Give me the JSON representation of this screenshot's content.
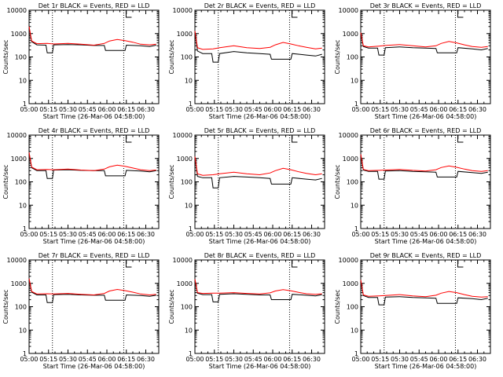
{
  "chart_data": [
    {
      "type": "line",
      "title": "Det 1r  BLACK = Events, RED = LLD",
      "xlabel": "Start Time (26-Mar-06 04:58:00)",
      "ylabel": "Counts/sec",
      "xlim": [
        "05:00",
        "06:40"
      ],
      "ylim": [
        1,
        10000
      ],
      "yscale": "log",
      "grid": false,
      "x_ticks": [
        "05:00",
        "05:15",
        "05:30",
        "05:45",
        "06:00",
        "06:15",
        "06:30"
      ],
      "y_ticks": [
        "1",
        "10",
        "100",
        "1000",
        "10000"
      ],
      "dotted_vlines": [
        "05:18",
        "06:13"
      ],
      "bracket_label": "L",
      "series": [
        {
          "name": "Events",
          "color": "#000000",
          "x_min": [
            0,
            2,
            6,
            13,
            14,
            18,
            19,
            30,
            40,
            50,
            58,
            59,
            74,
            75,
            86,
            93,
            98
          ],
          "y": [
            2000,
            450,
            330,
            320,
            150,
            150,
            330,
            340,
            330,
            310,
            310,
            190,
            190,
            320,
            300,
            280,
            320
          ]
        },
        {
          "name": "LLD",
          "color": "#ff0000",
          "x_min": [
            0,
            2,
            6,
            14,
            19,
            30,
            40,
            50,
            58,
            62,
            68,
            74,
            80,
            86,
            93,
            98
          ],
          "y": [
            2000,
            480,
            370,
            380,
            360,
            380,
            350,
            320,
            380,
            480,
            560,
            500,
            430,
            350,
            330,
            350
          ]
        }
      ]
    },
    {
      "type": "line",
      "title": "Det 2r  BLACK = Events, RED = LLD",
      "xlabel": "Start Time (26-Mar-06 04:58:00)",
      "ylabel": "Counts/sec",
      "xlim": [
        "05:00",
        "06:40"
      ],
      "ylim": [
        1,
        10000
      ],
      "yscale": "log",
      "grid": false,
      "x_ticks": [
        "05:00",
        "05:15",
        "05:30",
        "05:45",
        "06:00",
        "06:15",
        "06:30"
      ],
      "y_ticks": [
        "1",
        "10",
        "100",
        "1000",
        "10000"
      ],
      "dotted_vlines": [
        "05:18",
        "06:13"
      ],
      "bracket_label": "L",
      "series": [
        {
          "name": "Events",
          "color": "#000000",
          "x_min": [
            0,
            2,
            6,
            13,
            14,
            18,
            19,
            30,
            40,
            50,
            58,
            59,
            74,
            75,
            86,
            93,
            98
          ],
          "y": [
            1300,
            180,
            140,
            140,
            60,
            60,
            140,
            170,
            150,
            140,
            130,
            80,
            80,
            140,
            120,
            110,
            130
          ]
        },
        {
          "name": "LLD",
          "color": "#ff0000",
          "x_min": [
            0,
            2,
            6,
            14,
            19,
            30,
            40,
            50,
            58,
            62,
            68,
            74,
            80,
            86,
            93,
            98
          ],
          "y": [
            1300,
            250,
            210,
            220,
            250,
            300,
            250,
            230,
            260,
            330,
            420,
            360,
            300,
            260,
            220,
            240
          ]
        }
      ]
    },
    {
      "type": "line",
      "title": "Det 3r  BLACK = Events, RED = LLD",
      "xlabel": "Start Time (26-Mar-06 04:58:00)",
      "ylabel": "Counts/sec",
      "xlim": [
        "05:00",
        "06:40"
      ],
      "ylim": [
        1,
        10000
      ],
      "yscale": "log",
      "grid": false,
      "x_ticks": [
        "05:00",
        "05:15",
        "05:30",
        "05:45",
        "06:00",
        "06:15",
        "06:30"
      ],
      "y_ticks": [
        "1",
        "10",
        "100",
        "1000",
        "10000"
      ],
      "dotted_vlines": [
        "05:18",
        "06:13"
      ],
      "bracket_label": "L",
      "series": [
        {
          "name": "Events",
          "color": "#000000",
          "x_min": [
            0,
            2,
            6,
            13,
            14,
            18,
            19,
            30,
            40,
            50,
            58,
            59,
            74,
            75,
            86,
            93,
            98
          ],
          "y": [
            1100,
            280,
            240,
            240,
            120,
            120,
            250,
            270,
            250,
            240,
            230,
            150,
            150,
            250,
            220,
            200,
            230
          ]
        },
        {
          "name": "LLD",
          "color": "#ff0000",
          "x_min": [
            0,
            2,
            6,
            14,
            19,
            30,
            40,
            50,
            58,
            62,
            68,
            74,
            80,
            86,
            93,
            98
          ],
          "y": [
            1100,
            300,
            270,
            290,
            310,
            340,
            300,
            270,
            300,
            380,
            460,
            400,
            330,
            280,
            260,
            280
          ]
        }
      ]
    },
    {
      "type": "line",
      "title": "Det 4r  BLACK = Events, RED = LLD",
      "xlabel": "Start Time (26-Mar-06 04:58:00)",
      "ylabel": "Counts/sec",
      "xlim": [
        "05:00",
        "06:40"
      ],
      "ylim": [
        1,
        10000
      ],
      "yscale": "log",
      "grid": false,
      "x_ticks": [
        "05:00",
        "05:15",
        "05:30",
        "05:45",
        "06:00",
        "06:15",
        "06:30"
      ],
      "y_ticks": [
        "1",
        "10",
        "100",
        "1000",
        "10000"
      ],
      "dotted_vlines": [
        "05:18",
        "06:13"
      ],
      "bracket_label": "L",
      "series": [
        {
          "name": "Events",
          "color": "#000000",
          "x_min": [
            0,
            2,
            6,
            13,
            14,
            18,
            19,
            30,
            40,
            50,
            58,
            59,
            74,
            75,
            86,
            93,
            98
          ],
          "y": [
            1800,
            400,
            300,
            300,
            140,
            140,
            320,
            330,
            310,
            300,
            300,
            180,
            180,
            310,
            290,
            270,
            300
          ]
        },
        {
          "name": "LLD",
          "color": "#ff0000",
          "x_min": [
            0,
            2,
            6,
            14,
            19,
            30,
            40,
            50,
            58,
            62,
            68,
            74,
            80,
            86,
            93,
            98
          ],
          "y": [
            1800,
            430,
            330,
            340,
            330,
            350,
            320,
            300,
            350,
            440,
            520,
            460,
            390,
            330,
            300,
            320
          ]
        }
      ]
    },
    {
      "type": "line",
      "title": "Det 5r  BLACK = Events, RED = LLD",
      "xlabel": "Start Time (26-Mar-06 04:58:00)",
      "ylabel": "Counts/sec",
      "xlim": [
        "05:00",
        "06:40"
      ],
      "ylim": [
        1,
        10000
      ],
      "yscale": "log",
      "grid": false,
      "x_ticks": [
        "05:00",
        "05:15",
        "05:30",
        "05:45",
        "06:00",
        "06:15",
        "06:30"
      ],
      "y_ticks": [
        "1",
        "10",
        "100",
        "1000",
        "10000"
      ],
      "dotted_vlines": [
        "05:18",
        "06:13"
      ],
      "bracket_label": "L",
      "series": [
        {
          "name": "Events",
          "color": "#000000",
          "x_min": [
            0,
            2,
            6,
            13,
            14,
            18,
            19,
            30,
            40,
            50,
            58,
            59,
            74,
            75,
            86,
            93,
            98
          ],
          "y": [
            1200,
            170,
            150,
            150,
            55,
            55,
            150,
            170,
            160,
            150,
            140,
            80,
            80,
            150,
            130,
            120,
            140
          ]
        },
        {
          "name": "LLD",
          "color": "#ff0000",
          "x_min": [
            0,
            2,
            6,
            14,
            19,
            30,
            40,
            50,
            58,
            62,
            68,
            74,
            80,
            86,
            93,
            98
          ],
          "y": [
            1200,
            220,
            190,
            200,
            220,
            260,
            220,
            200,
            240,
            300,
            380,
            330,
            270,
            230,
            200,
            220
          ]
        }
      ]
    },
    {
      "type": "line",
      "title": "Det 6r  BLACK = Events, RED = LLD",
      "xlabel": "Start Time (26-Mar-06 04:58:00)",
      "ylabel": "Counts/sec",
      "xlim": [
        "05:00",
        "06:40"
      ],
      "ylim": [
        1,
        10000
      ],
      "yscale": "log",
      "grid": false,
      "x_ticks": [
        "05:00",
        "05:15",
        "05:30",
        "05:45",
        "06:00",
        "06:15",
        "06:30"
      ],
      "y_ticks": [
        "1",
        "10",
        "100",
        "1000",
        "10000"
      ],
      "dotted_vlines": [
        "05:18",
        "06:13"
      ],
      "bracket_label": "L",
      "series": [
        {
          "name": "Events",
          "color": "#000000",
          "x_min": [
            0,
            2,
            6,
            13,
            14,
            18,
            19,
            30,
            40,
            50,
            58,
            59,
            74,
            75,
            86,
            93,
            98
          ],
          "y": [
            1500,
            320,
            280,
            280,
            130,
            130,
            290,
            300,
            280,
            270,
            260,
            160,
            160,
            280,
            250,
            230,
            260
          ]
        },
        {
          "name": "LLD",
          "color": "#ff0000",
          "x_min": [
            0,
            2,
            6,
            14,
            19,
            30,
            40,
            50,
            58,
            62,
            68,
            74,
            80,
            86,
            93,
            98
          ],
          "y": [
            1500,
            340,
            300,
            310,
            320,
            340,
            310,
            290,
            330,
            410,
            480,
            420,
            350,
            300,
            280,
            300
          ]
        }
      ]
    },
    {
      "type": "line",
      "title": "Det 7r  BLACK = Events, RED = LLD",
      "xlabel": "Start Time (26-Mar-06 04:58:00)",
      "ylabel": "Counts/sec",
      "xlim": [
        "05:00",
        "06:40"
      ],
      "ylim": [
        1,
        10000
      ],
      "yscale": "log",
      "grid": false,
      "x_ticks": [
        "05:00",
        "05:15",
        "05:30",
        "05:45",
        "06:00",
        "06:15",
        "06:30"
      ],
      "y_ticks": [
        "1",
        "10",
        "100",
        "1000",
        "10000"
      ],
      "dotted_vlines": [
        "05:18",
        "06:13"
      ],
      "bracket_label": "L",
      "series": [
        {
          "name": "Events",
          "color": "#000000",
          "x_min": [
            0,
            2,
            6,
            13,
            14,
            18,
            19,
            30,
            40,
            50,
            58,
            59,
            74,
            75,
            86,
            93,
            98
          ],
          "y": [
            1600,
            420,
            320,
            320,
            150,
            150,
            330,
            340,
            320,
            310,
            310,
            190,
            190,
            320,
            300,
            280,
            310
          ]
        },
        {
          "name": "LLD",
          "color": "#ff0000",
          "x_min": [
            0,
            2,
            6,
            14,
            19,
            30,
            40,
            50,
            58,
            62,
            68,
            74,
            80,
            86,
            93,
            98
          ],
          "y": [
            1600,
            450,
            350,
            360,
            350,
            370,
            340,
            320,
            370,
            470,
            550,
            490,
            420,
            350,
            320,
            340
          ]
        }
      ]
    },
    {
      "type": "line",
      "title": "Det 8r  BLACK = Events, RED = LLD",
      "xlabel": "Start Time (26-Mar-06 04:58:00)",
      "ylabel": "Counts/sec",
      "xlim": [
        "05:00",
        "06:40"
      ],
      "ylim": [
        1,
        10000
      ],
      "yscale": "log",
      "grid": false,
      "x_ticks": [
        "05:00",
        "05:15",
        "05:30",
        "05:45",
        "06:00",
        "06:15",
        "06:30"
      ],
      "y_ticks": [
        "1",
        "10",
        "100",
        "1000",
        "10000"
      ],
      "dotted_vlines": [
        "05:18",
        "06:13"
      ],
      "bracket_label": "L",
      "series": [
        {
          "name": "Events",
          "color": "#000000",
          "x_min": [
            0,
            2,
            6,
            13,
            14,
            18,
            19,
            30,
            40,
            50,
            58,
            59,
            74,
            75,
            86,
            93,
            98
          ],
          "y": [
            1500,
            380,
            330,
            330,
            160,
            160,
            340,
            360,
            340,
            320,
            320,
            200,
            200,
            340,
            310,
            290,
            330
          ]
        },
        {
          "name": "LLD",
          "color": "#ff0000",
          "x_min": [
            0,
            2,
            6,
            14,
            19,
            30,
            40,
            50,
            58,
            62,
            68,
            74,
            80,
            86,
            93,
            98
          ],
          "y": [
            1500,
            400,
            370,
            380,
            380,
            400,
            370,
            350,
            390,
            470,
            540,
            480,
            410,
            360,
            340,
            360
          ]
        }
      ]
    },
    {
      "type": "line",
      "title": "Det 9r  BLACK = Events, RED = LLD",
      "xlabel": "Start Time (26-Mar-06 04:58:00)",
      "ylabel": "Counts/sec",
      "xlim": [
        "05:00",
        "06:40"
      ],
      "ylim": [
        1,
        10000
      ],
      "yscale": "log",
      "grid": false,
      "x_ticks": [
        "05:00",
        "05:15",
        "05:30",
        "05:45",
        "06:00",
        "06:15",
        "06:30"
      ],
      "y_ticks": [
        "1",
        "10",
        "100",
        "1000",
        "10000"
      ],
      "dotted_vlines": [
        "05:18",
        "06:13"
      ],
      "bracket_label": "L",
      "series": [
        {
          "name": "Events",
          "color": "#000000",
          "x_min": [
            0,
            2,
            6,
            13,
            14,
            18,
            19,
            30,
            40,
            50,
            58,
            59,
            74,
            75,
            86,
            93,
            98
          ],
          "y": [
            1400,
            300,
            250,
            250,
            120,
            120,
            260,
            270,
            250,
            240,
            230,
            140,
            140,
            240,
            220,
            200,
            230
          ]
        },
        {
          "name": "LLD",
          "color": "#ff0000",
          "x_min": [
            0,
            2,
            6,
            14,
            19,
            30,
            40,
            50,
            58,
            62,
            68,
            74,
            80,
            86,
            93,
            98
          ],
          "y": [
            1400,
            320,
            280,
            290,
            300,
            330,
            290,
            270,
            310,
            380,
            450,
            400,
            330,
            280,
            260,
            270
          ]
        }
      ]
    }
  ]
}
